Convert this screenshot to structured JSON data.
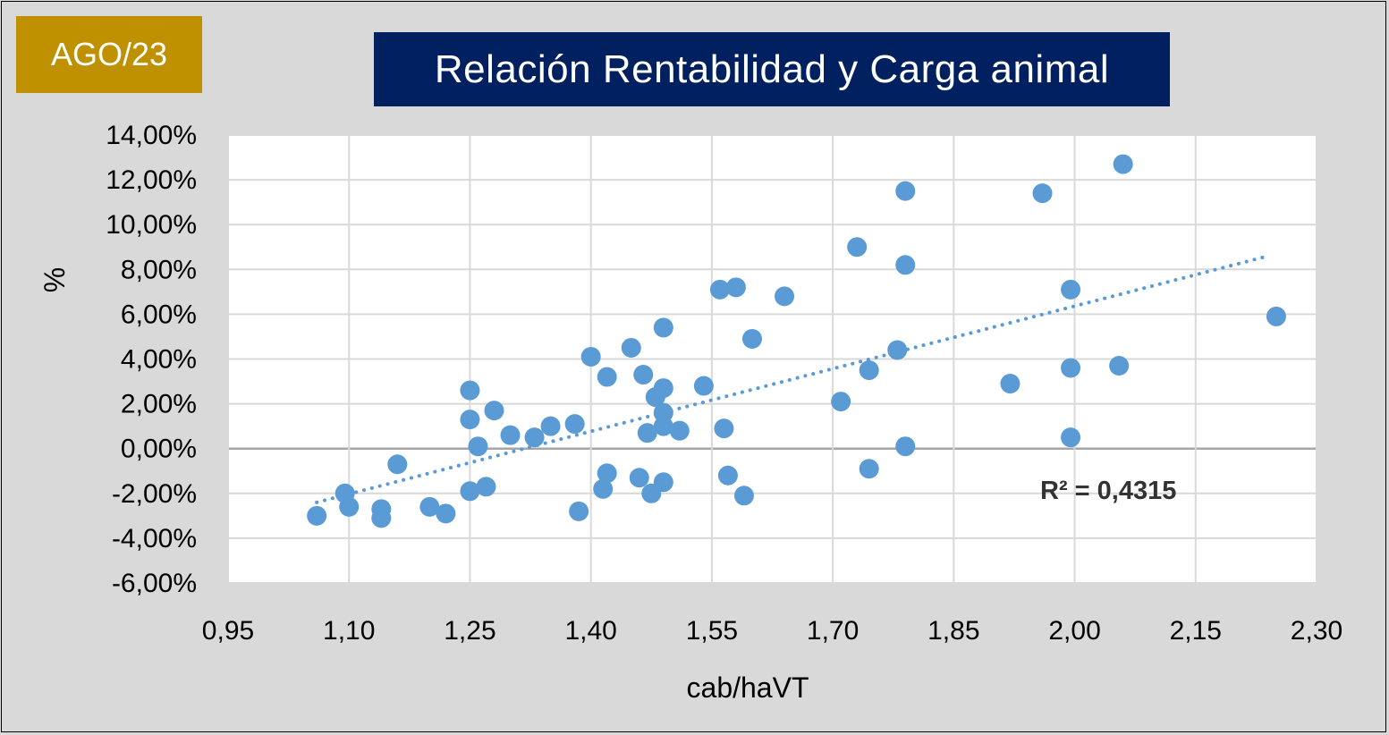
{
  "badge": {
    "label": "AGO/23",
    "color": "#bf9000"
  },
  "chart_title_color": "#002060",
  "chart_data": {
    "type": "scatter",
    "title": "Relación Rentabilidad y Carga animal",
    "xlabel": "cab/haVT",
    "ylabel": "%",
    "xlim": [
      0.95,
      2.3
    ],
    "ylim": [
      -6,
      14
    ],
    "x_ticks": [
      "0,95",
      "1,10",
      "1,25",
      "1,40",
      "1,55",
      "1,70",
      "1,85",
      "2,00",
      "2,15",
      "2,30"
    ],
    "y_ticks": [
      "14,00%",
      "12,00%",
      "10,00%",
      "8,00%",
      "6,00%",
      "4,00%",
      "2,00%",
      "0,00%",
      "-2,00%",
      "-4,00%",
      "-6,00%"
    ],
    "grid": true,
    "legend": "none",
    "point_color": "#5b9bd5",
    "trendline": {
      "type": "linear",
      "r2_label": "R² = 0,4315",
      "x_range": [
        1.06,
        2.24
      ],
      "y_range": [
        -2.4,
        8.6
      ],
      "color": "#5b9bd5"
    },
    "points": [
      {
        "x": 1.06,
        "y": -3.0
      },
      {
        "x": 1.1,
        "y": -2.6
      },
      {
        "x": 1.095,
        "y": -2.0
      },
      {
        "x": 1.14,
        "y": -2.7
      },
      {
        "x": 1.14,
        "y": -3.1
      },
      {
        "x": 1.16,
        "y": -0.7
      },
      {
        "x": 1.2,
        "y": -2.6
      },
      {
        "x": 1.22,
        "y": -2.9
      },
      {
        "x": 1.25,
        "y": -1.9
      },
      {
        "x": 1.25,
        "y": 1.3
      },
      {
        "x": 1.25,
        "y": 2.6
      },
      {
        "x": 1.26,
        "y": 0.1
      },
      {
        "x": 1.27,
        "y": -1.7
      },
      {
        "x": 1.28,
        "y": 1.7
      },
      {
        "x": 1.3,
        "y": 0.6
      },
      {
        "x": 1.33,
        "y": 0.5
      },
      {
        "x": 1.35,
        "y": 1.0
      },
      {
        "x": 1.38,
        "y": 1.1
      },
      {
        "x": 1.385,
        "y": -2.8
      },
      {
        "x": 1.4,
        "y": 4.1
      },
      {
        "x": 1.415,
        "y": -1.8
      },
      {
        "x": 1.42,
        "y": -1.1
      },
      {
        "x": 1.42,
        "y": 3.2
      },
      {
        "x": 1.45,
        "y": 4.5
      },
      {
        "x": 1.46,
        "y": -1.3
      },
      {
        "x": 1.465,
        "y": 3.3
      },
      {
        "x": 1.47,
        "y": 0.7
      },
      {
        "x": 1.475,
        "y": -2.0
      },
      {
        "x": 1.48,
        "y": 2.3
      },
      {
        "x": 1.49,
        "y": 2.7
      },
      {
        "x": 1.49,
        "y": 1.6
      },
      {
        "x": 1.49,
        "y": 1.0
      },
      {
        "x": 1.49,
        "y": 5.4
      },
      {
        "x": 1.49,
        "y": -1.5
      },
      {
        "x": 1.51,
        "y": 0.8
      },
      {
        "x": 1.54,
        "y": 2.8
      },
      {
        "x": 1.56,
        "y": 7.1
      },
      {
        "x": 1.565,
        "y": 0.9
      },
      {
        "x": 1.57,
        "y": -1.2
      },
      {
        "x": 1.58,
        "y": 7.2
      },
      {
        "x": 1.59,
        "y": -2.1
      },
      {
        "x": 1.6,
        "y": 4.9
      },
      {
        "x": 1.64,
        "y": 6.8
      },
      {
        "x": 1.71,
        "y": 2.1
      },
      {
        "x": 1.73,
        "y": 9.0
      },
      {
        "x": 1.745,
        "y": 3.5
      },
      {
        "x": 1.745,
        "y": -0.9
      },
      {
        "x": 1.78,
        "y": 4.4
      },
      {
        "x": 1.79,
        "y": 8.2
      },
      {
        "x": 1.79,
        "y": 11.5
      },
      {
        "x": 1.79,
        "y": 0.1
      },
      {
        "x": 1.92,
        "y": 2.9
      },
      {
        "x": 1.96,
        "y": 11.4
      },
      {
        "x": 1.995,
        "y": 7.1
      },
      {
        "x": 1.995,
        "y": 3.6
      },
      {
        "x": 1.995,
        "y": 0.5
      },
      {
        "x": 2.055,
        "y": 3.7
      },
      {
        "x": 2.06,
        "y": 12.7
      },
      {
        "x": 2.25,
        "y": 5.9
      }
    ]
  }
}
